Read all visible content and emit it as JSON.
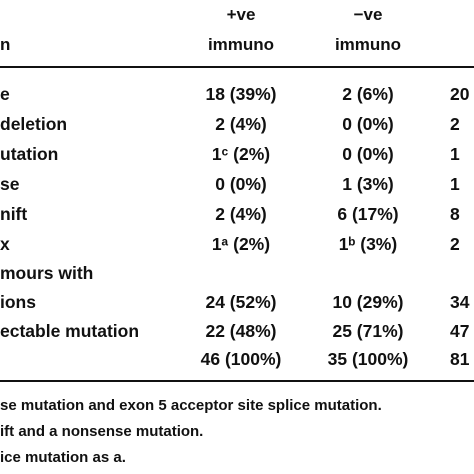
{
  "header": {
    "first_col": "n",
    "col1_line1": "+ve",
    "col1_line2": "immuno",
    "col2_line1": "−ve",
    "col2_line2": "immuno"
  },
  "rows": [
    {
      "label": "e",
      "c1": "18 (39%)",
      "c2": "2 (6%)",
      "c3": "20"
    },
    {
      "label": "deletion",
      "c1": "2 (4%)",
      "c2": "0 (0%)",
      "c3": "2"
    },
    {
      "label": "utation",
      "c1": "1ᶜ (2%)",
      "c2": "0 (0%)",
      "c3": "1"
    },
    {
      "label": "se",
      "c1": "0 (0%)",
      "c2": "1 (3%)",
      "c3": "1"
    },
    {
      "label": "nift",
      "c1": "2 (4%)",
      "c2": "6 (17%)",
      "c3": "8"
    },
    {
      "label": "x",
      "c1": "1ᵃ (2%)",
      "c2": "1ᵇ (3%)",
      "c3": "2"
    },
    {
      "label": "mours with",
      "c1": "",
      "c2": "",
      "c3": ""
    },
    {
      "label": "ions",
      "c1": "24 (52%)",
      "c2": "10 (29%)",
      "c3": "34"
    },
    {
      "label": "ectable mutation",
      "c1": "22 (48%)",
      "c2": "25 (71%)",
      "c3": "47"
    },
    {
      "label": "",
      "c1": "46 (100%)",
      "c2": "35 (100%)",
      "c3": "81"
    }
  ],
  "footnotes": [
    "se mutation and exon 5 acceptor site splice mutation.",
    "ift and a nonsense mutation.",
    "ice mutation as a."
  ]
}
